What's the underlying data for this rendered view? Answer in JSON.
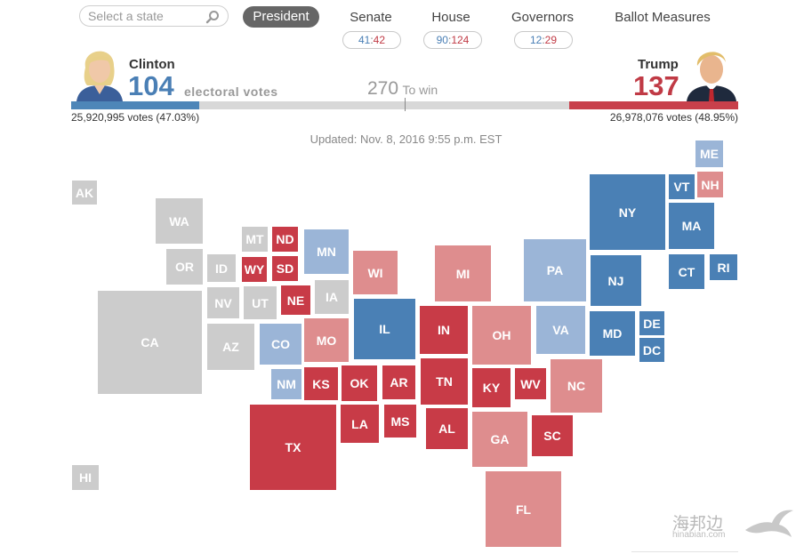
{
  "search": {
    "placeholder": "Select a state",
    "icon": "search-icon"
  },
  "tabs": [
    {
      "label": "President",
      "active": true
    },
    {
      "label": "Senate",
      "blue": "41",
      "red": "42"
    },
    {
      "label": "House",
      "blue": "90",
      "red": "124"
    },
    {
      "label": "Governors",
      "blue": "12",
      "red": "29"
    },
    {
      "label": "Ballot Measures"
    }
  ],
  "pill_sep": ":",
  "clinton": {
    "name": "Clinton",
    "electoral_votes": "104",
    "popular": "25,920,995 votes (47.03%)",
    "color": "#4e86b8"
  },
  "trump": {
    "name": "Trump",
    "electoral_votes": "137",
    "popular": "26,978,076 votes (48.95%)",
    "color": "#c8404b"
  },
  "electoral_label": "electoral votes",
  "to_win": {
    "number": "270",
    "label": "To win"
  },
  "updated": "Updated: Nov. 8, 2016 9:55 p.m. EST",
  "colors": {
    "gray": "#cccccc",
    "dark_blue": "#4a80b5",
    "light_blue": "#9bb5d7",
    "dark_red": "#c83b47",
    "light_red": "#de8d8e"
  },
  "states": {
    "AK": "AK",
    "HI": "HI",
    "WA": "WA",
    "OR": "OR",
    "CA": "CA",
    "ID": "ID",
    "NV": "NV",
    "UT": "UT",
    "AZ": "AZ",
    "MT": "MT",
    "WY": "WY",
    "CO": "CO",
    "NM": "NM",
    "ND": "ND",
    "SD": "SD",
    "NE": "NE",
    "KS": "KS",
    "OK": "OK",
    "TX": "TX",
    "MN": "MN",
    "IA": "IA",
    "MO": "MO",
    "AR": "AR",
    "LA": "LA",
    "WI": "WI",
    "IL": "IL",
    "MS": "MS",
    "MI": "MI",
    "IN": "IN",
    "TN": "TN",
    "AL": "AL",
    "KY": "KY",
    "OH": "OH",
    "GA": "GA",
    "FL": "FL",
    "WV": "WV",
    "PA": "PA",
    "VA": "VA",
    "NC": "NC",
    "SC": "SC",
    "NY": "NY",
    "NJ": "NJ",
    "MD": "MD",
    "DE": "DE",
    "DC": "DC",
    "VT": "VT",
    "NH": "NH",
    "ME": "ME",
    "MA": "MA",
    "CT": "CT",
    "RI": "RI"
  },
  "watermark": {
    "cn": "海邦边",
    "url": "hinabian.com"
  }
}
